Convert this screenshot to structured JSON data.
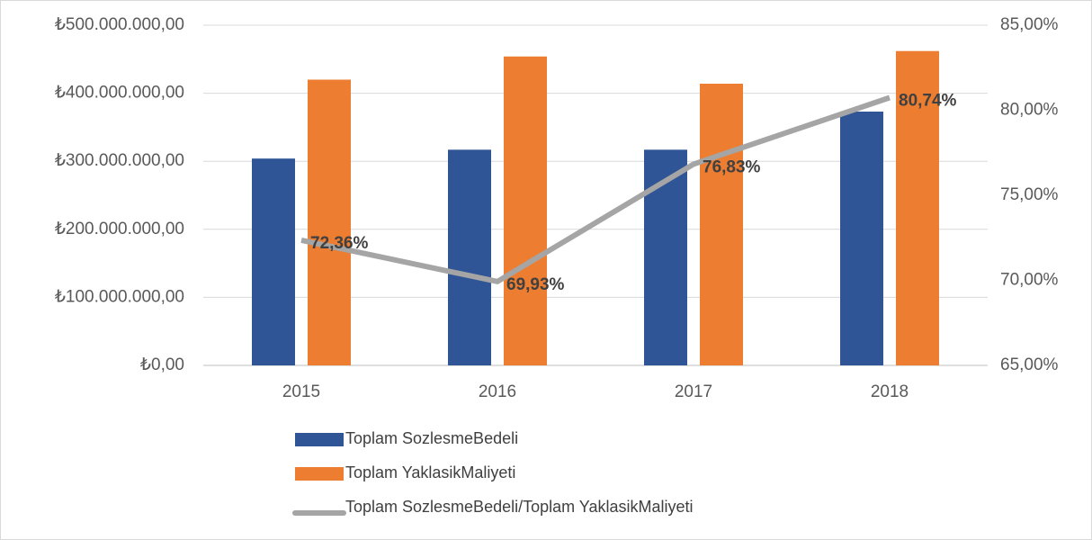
{
  "chart_data": {
    "type": "bar_line",
    "categories": [
      "2015",
      "2016",
      "2017",
      "2018"
    ],
    "series": [
      {
        "name": "Toplam SozlesmeBedeli",
        "color": "#2f5597",
        "type": "bar",
        "values": [
          304000000,
          317000000,
          317000000,
          373000000
        ]
      },
      {
        "name": "Toplam YaklasikMaliyeti",
        "color": "#ed7d31",
        "type": "bar",
        "values": [
          420000000,
          454000000,
          414000000,
          462000000
        ]
      },
      {
        "name": "Toplam SozlesmeBedeli/Toplam YaklasikMaliyeti",
        "color": "#a5a5a5",
        "type": "line",
        "axis": "y2",
        "values": [
          72.36,
          69.93,
          76.83,
          80.74
        ],
        "value_labels": [
          "72,36%",
          "69,93%",
          "76,83%",
          "80,74%"
        ]
      }
    ],
    "ylim": [
      0,
      500000000
    ],
    "yticks": [
      {
        "value": 0,
        "label": "₺0,00"
      },
      {
        "value": 100000000,
        "label": "₺100.000.000,00"
      },
      {
        "value": 200000000,
        "label": "₺200.000.000,00"
      },
      {
        "value": 300000000,
        "label": "₺300.000.000,00"
      },
      {
        "value": 400000000,
        "label": "₺400.000.000,00"
      },
      {
        "value": 500000000,
        "label": "₺500.000.000,00"
      }
    ],
    "y2lim": [
      65,
      85
    ],
    "y2ticks": [
      {
        "value": 65,
        "label": "65,00%"
      },
      {
        "value": 70,
        "label": "70,00%"
      },
      {
        "value": 75,
        "label": "75,00%"
      },
      {
        "value": 80,
        "label": "80,00%"
      },
      {
        "value": 85,
        "label": "85,00%"
      }
    ],
    "grid": true,
    "legend": "bottom"
  }
}
